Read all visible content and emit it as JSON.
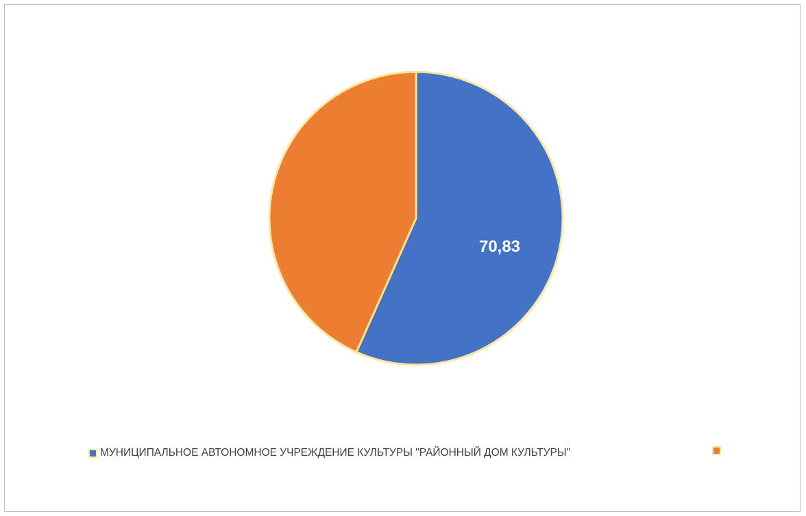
{
  "chart_data": {
    "type": "pie",
    "slices": [
      {
        "label": "МУНИЦИПАЛЬНОЕ АВТОНОМНОЕ УЧРЕЖДЕНИЕ КУЛЬТУРЫ \"РАЙОННЫЙ ДОМ КУЛЬТУРЫ\"",
        "value": 70.83,
        "data_label": "70,83",
        "color": "#4472c4"
      },
      {
        "label": "",
        "value": 54.17,
        "data_label": "",
        "color": "#ed7d31"
      }
    ],
    "slice_border_color": "#ffe699",
    "legend_position": "bottom",
    "title": ""
  }
}
